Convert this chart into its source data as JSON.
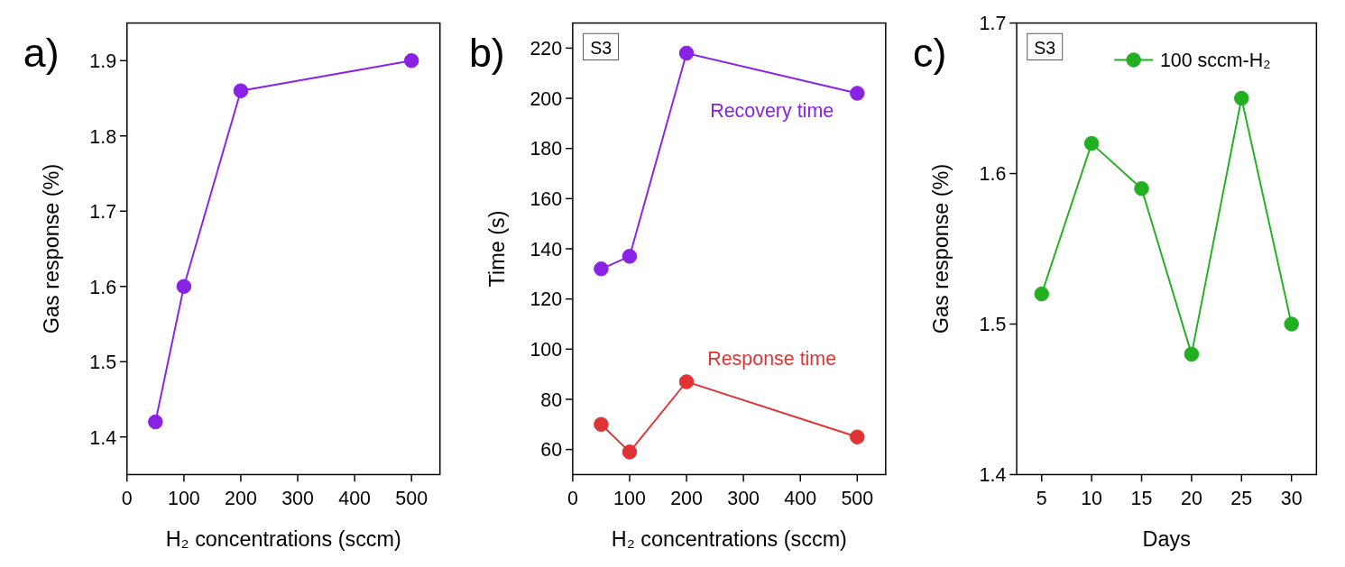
{
  "chart_data": [
    {
      "type": "line",
      "xlabel": "H₂ concentrations (sccm)",
      "ylabel": "Gas response (%)",
      "xlim": [
        0,
        550
      ],
      "ylim": [
        1.35,
        1.95
      ],
      "xticks": [
        0,
        100,
        200,
        300,
        400,
        500
      ],
      "yticks": [
        1.4,
        1.5,
        1.6,
        1.7,
        1.8,
        1.9
      ],
      "marker": "circle",
      "annotations": [
        "a)"
      ],
      "series": [
        {
          "color": "#8a22e6",
          "x": [
            50,
            100,
            200,
            500
          ],
          "values": [
            1.42,
            1.6,
            1.86,
            1.9
          ]
        }
      ]
    },
    {
      "type": "line",
      "xlabel": "H₂ concentrations (sccm)",
      "ylabel": "Time (s)",
      "xlim": [
        0,
        550
      ],
      "ylim": [
        50,
        230
      ],
      "xticks": [
        0,
        100,
        200,
        300,
        400,
        500
      ],
      "yticks": [
        60,
        80,
        100,
        120,
        140,
        160,
        180,
        200,
        220
      ],
      "marker": "circle",
      "annotations": [
        "b)",
        "S3"
      ],
      "series": [
        {
          "name": "Recovery time",
          "color": "#8a22e6",
          "x": [
            50,
            100,
            200,
            500
          ],
          "values": [
            132,
            137,
            218,
            202
          ]
        },
        {
          "name": "Response time",
          "color": "#e03434",
          "x": [
            50,
            100,
            200,
            500
          ],
          "values": [
            70,
            59,
            87,
            65
          ]
        }
      ]
    },
    {
      "type": "line",
      "xlabel": "Days",
      "ylabel": "Gas response (%)",
      "xlim": [
        2.5,
        32.5
      ],
      "ylim": [
        1.4,
        1.7
      ],
      "xticks": [
        5,
        10,
        15,
        20,
        25,
        30
      ],
      "yticks": [
        1.4,
        1.5,
        1.6,
        1.7
      ],
      "marker": "circle",
      "legend": "top right",
      "annotations": [
        "c)",
        "S3"
      ],
      "series": [
        {
          "name": "100 sccm-H₂",
          "color": "#22b022",
          "x": [
            5,
            10,
            15,
            20,
            25,
            30
          ],
          "values": [
            1.52,
            1.62,
            1.59,
            1.48,
            1.65,
            1.5
          ]
        }
      ]
    }
  ]
}
